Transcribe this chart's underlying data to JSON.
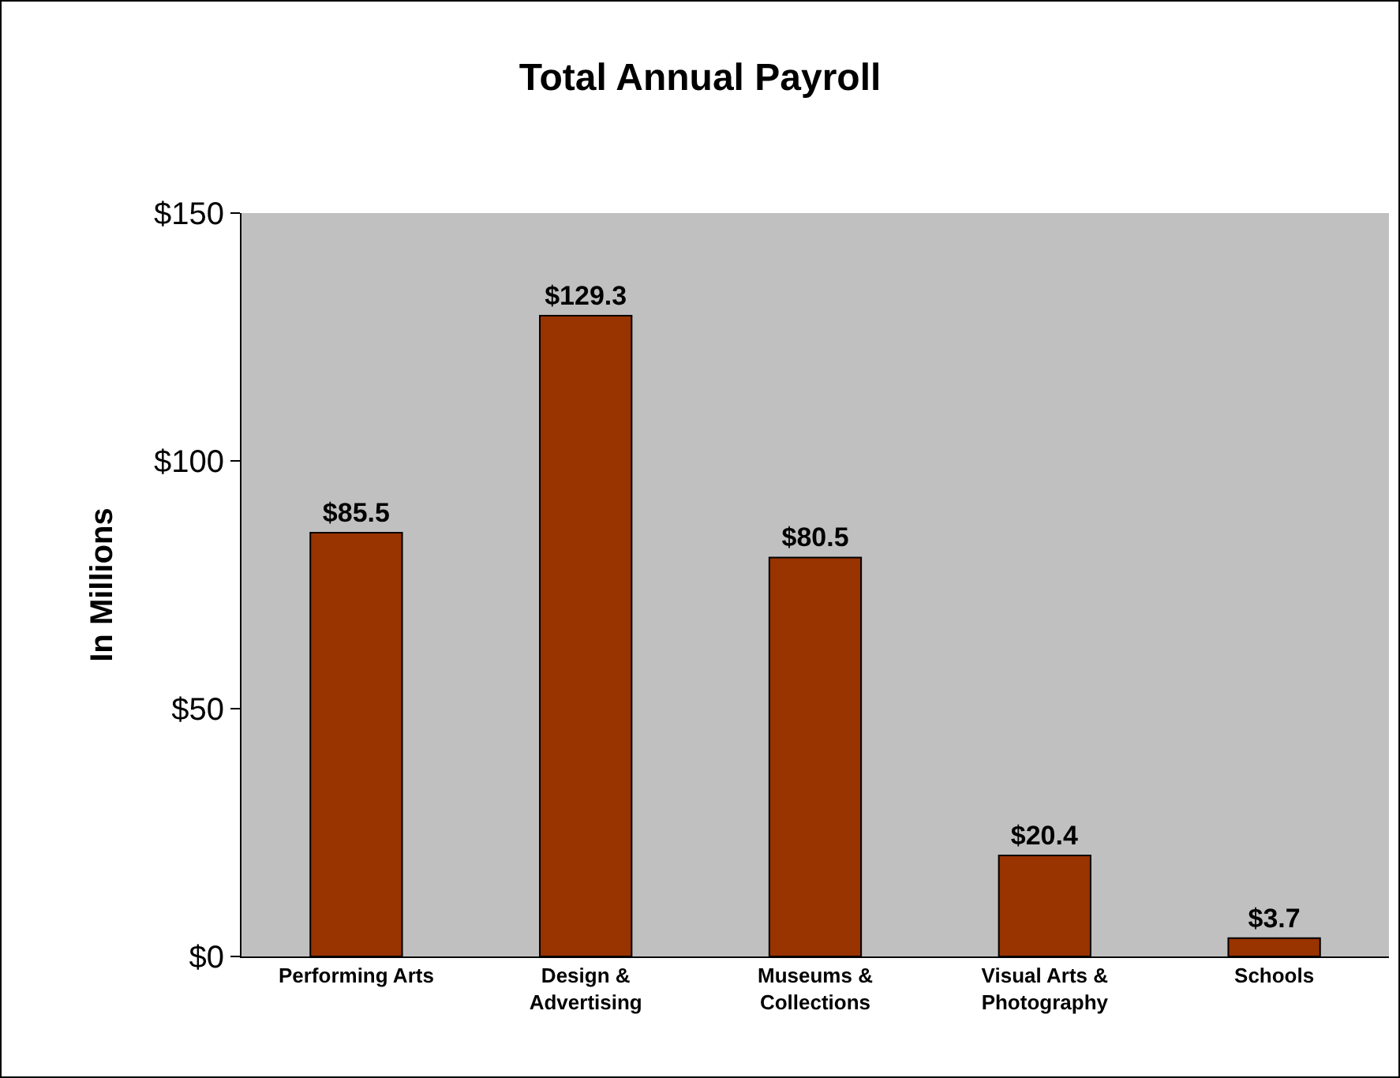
{
  "chart_data": {
    "type": "bar",
    "title": "Total Annual Payroll",
    "ylabel": "In Millions",
    "categories": [
      "Performing Arts",
      "Design &\nAdvertising",
      "Museums &\nCollections",
      "Visual Arts &\nPhotography",
      "Schools"
    ],
    "values": [
      85.5,
      129.3,
      80.5,
      20.4,
      3.7
    ],
    "value_labels": [
      "$85.5",
      "$129.3",
      "$80.5",
      "$20.4",
      "$3.7"
    ],
    "color": "#993300",
    "ylim": [
      0,
      150
    ],
    "yticks": [
      {
        "value": 0,
        "label": "$0"
      },
      {
        "value": 50,
        "label": "$50"
      },
      {
        "value": 100,
        "label": "$100"
      },
      {
        "value": 150,
        "label": "$150"
      }
    ],
    "grid": false,
    "legend": false
  }
}
